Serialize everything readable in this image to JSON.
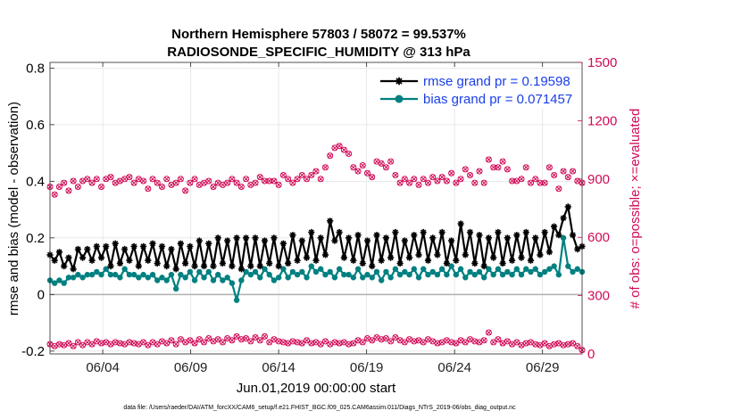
{
  "chart_data": {
    "type": "line",
    "title": "Northern Hemisphere 57803 / 58072 = 99.537%",
    "subtitle": "RADIOSONDE_SPECIFIC_HUMIDITY @ 313 hPa",
    "xlabel": "Jun.01,2019 00:00:00 start",
    "ylabel": "rmse and bias (model - observation)",
    "ylabel_right": "# of obs: o=possible; ×=evaluated",
    "footnote": "data file: /Users/raeder/DAI/ATM_forcXX/CAM6_setup/f.e21.FHIST_BGC.f09_025.CAM6assim.011/Diags_NTrS_2019-06/obs_diag_output.nc",
    "xlim": [
      1.0,
      31.25
    ],
    "ylim": [
      -0.21,
      0.82
    ],
    "ylim_right": [
      0,
      1500
    ],
    "x_ticks": [
      {
        "label": "06/04",
        "value": 4
      },
      {
        "label": "06/09",
        "value": 9
      },
      {
        "label": "06/14",
        "value": 14
      },
      {
        "label": "06/19",
        "value": 19
      },
      {
        "label": "06/24",
        "value": 24
      },
      {
        "label": "06/29",
        "value": 29
      }
    ],
    "y_ticks_left": [
      {
        "label": "-0.2",
        "value": -0.2
      },
      {
        "label": "0",
        "value": 0
      },
      {
        "label": "0.2",
        "value": 0.2
      },
      {
        "label": "0.4",
        "value": 0.4
      },
      {
        "label": "0.6",
        "value": 0.6
      },
      {
        "label": "0.8",
        "value": 0.8
      }
    ],
    "y_ticks_right": [
      {
        "label": "0",
        "value": 0
      },
      {
        "label": "300",
        "value": 300
      },
      {
        "label": "600",
        "value": 600
      },
      {
        "label": "900",
        "value": 900
      },
      {
        "label": "1200",
        "value": 1200
      },
      {
        "label": "1500",
        "value": 1500
      }
    ],
    "legend_position": "top-right",
    "series": [
      {
        "name": "rmse grand pr = 0.19598",
        "color": "#000000",
        "axis": "left",
        "values": [
          0.14,
          0.12,
          0.15,
          0.1,
          0.13,
          0.09,
          0.16,
          0.13,
          0.16,
          0.12,
          0.17,
          0.13,
          0.17,
          0.1,
          0.18,
          0.11,
          0.16,
          0.12,
          0.17,
          0.1,
          0.17,
          0.12,
          0.18,
          0.11,
          0.17,
          0.1,
          0.16,
          0.09,
          0.18,
          0.11,
          0.17,
          0.1,
          0.19,
          0.1,
          0.18,
          0.1,
          0.2,
          0.11,
          0.19,
          0.1,
          0.2,
          0.09,
          0.2,
          0.1,
          0.2,
          0.1,
          0.19,
          0.11,
          0.2,
          0.1,
          0.18,
          0.11,
          0.21,
          0.12,
          0.19,
          0.13,
          0.22,
          0.12,
          0.2,
          0.14,
          0.26,
          0.19,
          0.22,
          0.13,
          0.2,
          0.12,
          0.21,
          0.11,
          0.19,
          0.1,
          0.21,
          0.12,
          0.2,
          0.13,
          0.22,
          0.11,
          0.19,
          0.13,
          0.21,
          0.14,
          0.22,
          0.12,
          0.2,
          0.14,
          0.22,
          0.11,
          0.19,
          0.12,
          0.25,
          0.14,
          0.22,
          0.11,
          0.21,
          0.1,
          0.2,
          0.13,
          0.22,
          0.11,
          0.2,
          0.12,
          0.21,
          0.13,
          0.22,
          0.12,
          0.2,
          0.14,
          0.22,
          0.15,
          0.24,
          0.21,
          0.27,
          0.31,
          0.21,
          0.16,
          0.17
        ]
      },
      {
        "name": "bias grand pr = 0.071457",
        "color": "#008080",
        "axis": "left",
        "values": [
          0.05,
          0.04,
          0.05,
          0.04,
          0.06,
          0.06,
          0.07,
          0.06,
          0.07,
          0.07,
          0.08,
          0.07,
          0.09,
          0.07,
          0.07,
          0.06,
          0.09,
          0.07,
          0.07,
          0.06,
          0.07,
          0.06,
          0.07,
          0.05,
          0.06,
          0.05,
          0.07,
          0.02,
          0.07,
          0.06,
          0.08,
          0.05,
          0.08,
          0.06,
          0.08,
          0.05,
          0.07,
          0.05,
          0.06,
          0.04,
          -0.02,
          0.05,
          0.08,
          0.07,
          0.08,
          0.06,
          0.09,
          0.07,
          0.05,
          0.06,
          0.09,
          0.06,
          0.08,
          0.07,
          0.08,
          0.06,
          0.1,
          0.08,
          0.09,
          0.07,
          0.08,
          0.06,
          0.09,
          0.07,
          0.07,
          0.06,
          0.09,
          0.06,
          0.07,
          0.06,
          0.08,
          0.05,
          0.08,
          0.06,
          0.09,
          0.07,
          0.08,
          0.07,
          0.09,
          0.06,
          0.09,
          0.07,
          0.08,
          0.07,
          0.09,
          0.07,
          0.1,
          0.07,
          0.09,
          0.06,
          0.08,
          0.07,
          0.08,
          0.06,
          0.09,
          0.07,
          0.09,
          0.07,
          0.08,
          0.07,
          0.09,
          0.07,
          0.09,
          0.08,
          0.09,
          0.07,
          0.08,
          0.09,
          0.1,
          0.07,
          0.2,
          0.1,
          0.08,
          0.09,
          0.08
        ]
      }
    ],
    "obs_series": {
      "name": "# of obs",
      "color": "#d10a57",
      "axis": "right",
      "markers": [
        "possible (o)",
        "evaluated (×)"
      ],
      "values": [
        860,
        820,
        860,
        880,
        840,
        890,
        860,
        890,
        900,
        880,
        900,
        860,
        900,
        910,
        880,
        890,
        900,
        910,
        880,
        900,
        890,
        850,
        900,
        880,
        860,
        900,
        870,
        880,
        900,
        840,
        880,
        900,
        870,
        880,
        890,
        860,
        880,
        870,
        880,
        900,
        880,
        860,
        900,
        870,
        880,
        910,
        890,
        890,
        890,
        870,
        920,
        900,
        880,
        900,
        920,
        900,
        920,
        940,
        900,
        960,
        1020,
        1060,
        1070,
        1050,
        1030,
        960,
        940,
        970,
        930,
        910,
        990,
        980,
        960,
        990,
        920,
        880,
        900,
        880,
        900,
        870,
        900,
        880,
        910,
        890,
        910,
        890,
        930,
        880,
        900,
        950,
        920,
        880,
        940,
        880,
        1000,
        960,
        960,
        990,
        950,
        890,
        890,
        900,
        960,
        880,
        900,
        880,
        880,
        960,
        920,
        850,
        940,
        910,
        940,
        890,
        880
      ],
      "low_values": [
        50,
        40,
        50,
        45,
        55,
        40,
        60,
        45,
        60,
        50,
        65,
        55,
        60,
        50,
        60,
        55,
        50,
        60,
        55,
        50,
        60,
        45,
        60,
        50,
        65,
        55,
        70,
        50,
        75,
        60,
        70,
        55,
        75,
        60,
        80,
        65,
        75,
        60,
        80,
        70,
        90,
        75,
        80,
        65,
        85,
        70,
        90,
        60,
        75,
        65,
        60,
        55,
        65,
        60,
        55,
        70,
        55,
        60,
        50,
        65,
        50,
        60,
        55,
        60,
        50,
        55,
        70,
        60,
        80,
        70,
        85,
        75,
        80,
        65,
        85,
        70,
        60,
        75,
        65,
        70,
        60,
        75,
        65,
        55,
        60,
        70,
        60,
        55,
        70,
        60,
        75,
        65,
        60,
        70,
        110,
        60,
        75,
        55,
        65,
        50,
        60,
        45,
        55,
        60,
        50,
        45,
        55,
        40,
        50,
        55,
        45,
        50,
        55,
        40,
        20
      ]
    }
  }
}
